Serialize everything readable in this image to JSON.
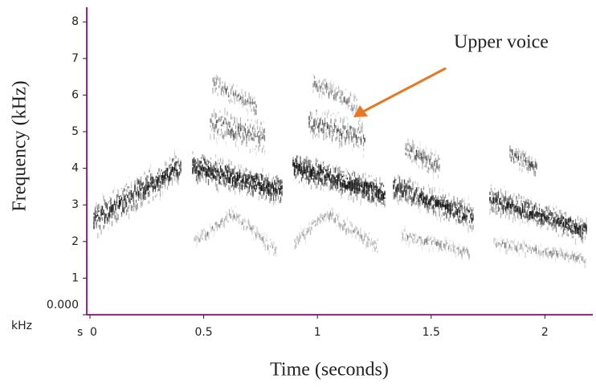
{
  "chart_data": {
    "type": "spectrogram",
    "x_label": "Time (seconds)",
    "y_label": "Frequency (kHz)",
    "x_unit": "s",
    "y_unit": "kHz",
    "xlim": [
      0,
      2.2
    ],
    "xticks": [
      0,
      0.5,
      1,
      1.5,
      2
    ],
    "ylim": [
      0,
      8.4
    ],
    "yticks": [
      {
        "value": 0,
        "label": "0.000"
      },
      1,
      2,
      3,
      4,
      5,
      6,
      7,
      8
    ],
    "axis_color": "#a020a0",
    "origin_color": "#2222cc",
    "annotation": {
      "text": "Upper voice",
      "color": "#e87722"
    }
  }
}
